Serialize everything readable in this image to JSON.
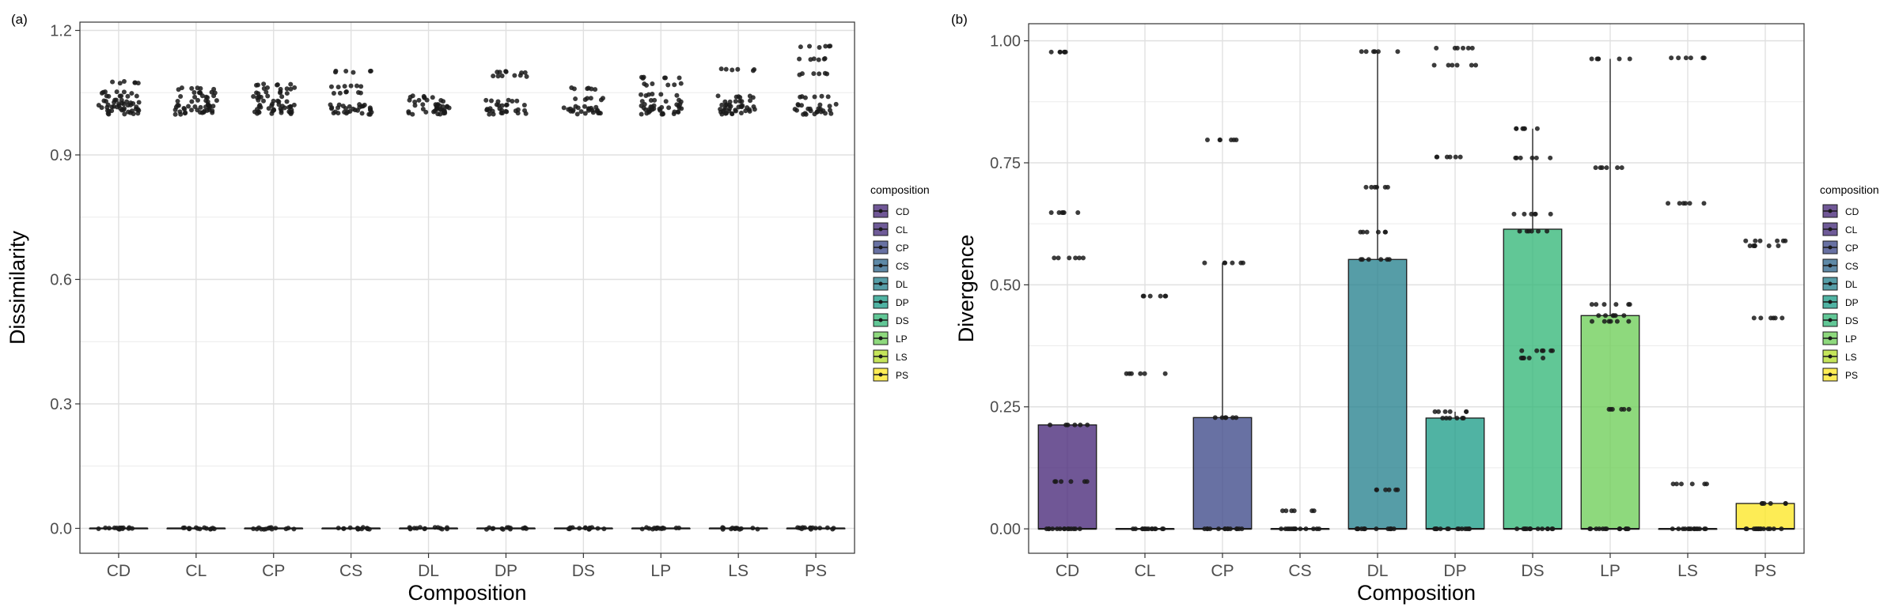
{
  "chart_data": [
    {
      "type": "box",
      "panel_label": "(a)",
      "title": "",
      "xlabel": "Composition",
      "ylabel": "Dissimilarity",
      "categories": [
        "CD",
        "CL",
        "CP",
        "CS",
        "DL",
        "DP",
        "DS",
        "LP",
        "LS",
        "PS"
      ],
      "ylim": [
        -0.06,
        1.22
      ],
      "yticks": [
        0.0,
        0.3,
        0.6,
        0.9,
        1.2
      ],
      "ytick_labels": [
        "0.0",
        "0.3",
        "0.6",
        "0.9",
        "1.2"
      ],
      "grid": true,
      "boxes": [
        {
          "category": "CD",
          "min": 0,
          "q1": 0,
          "median": 0,
          "q3": 0,
          "max": 0
        },
        {
          "category": "CL",
          "min": 0,
          "q1": 0,
          "median": 0,
          "q3": 0,
          "max": 0
        },
        {
          "category": "CP",
          "min": 0,
          "q1": 0,
          "median": 0,
          "q3": 0,
          "max": 0
        },
        {
          "category": "CS",
          "min": 0,
          "q1": 0,
          "median": 0,
          "q3": 0,
          "max": 0
        },
        {
          "category": "DL",
          "min": 0,
          "q1": 0,
          "median": 0,
          "q3": 0,
          "max": 0
        },
        {
          "category": "DP",
          "min": 0,
          "q1": 0,
          "median": 0,
          "q3": 0,
          "max": 0
        },
        {
          "category": "DS",
          "min": 0,
          "q1": 0,
          "median": 0,
          "q3": 0,
          "max": 0
        },
        {
          "category": "LP",
          "min": 0,
          "q1": 0,
          "median": 0,
          "q3": 0,
          "max": 0
        },
        {
          "category": "LS",
          "min": 0,
          "q1": 0,
          "median": 0,
          "q3": 0,
          "max": 0
        },
        {
          "category": "PS",
          "min": 0,
          "q1": 0,
          "median": 0,
          "q3": 0,
          "max": 0
        }
      ],
      "points": [
        {
          "category": "CD",
          "values": [
            0,
            1.0,
            1.005,
            1.01,
            1.015,
            1.02,
            1.025,
            1.03,
            1.04,
            1.05,
            1.075
          ]
        },
        {
          "category": "CL",
          "values": [
            0,
            1.0,
            1.005,
            1.01,
            1.015,
            1.02,
            1.03,
            1.04,
            1.05,
            1.06
          ]
        },
        {
          "category": "CP",
          "values": [
            0,
            1.0,
            1.005,
            1.01,
            1.015,
            1.02,
            1.03,
            1.04,
            1.05,
            1.06,
            1.07
          ]
        },
        {
          "category": "CS",
          "values": [
            0,
            1.0,
            1.005,
            1.01,
            1.015,
            1.02,
            1.05,
            1.065,
            1.1
          ]
        },
        {
          "category": "DL",
          "values": [
            0,
            1.0,
            1.005,
            1.01,
            1.015,
            1.02,
            1.03,
            1.04
          ]
        },
        {
          "category": "DP",
          "values": [
            0,
            1.0,
            1.005,
            1.01,
            1.02,
            1.03,
            1.09,
            1.1
          ]
        },
        {
          "category": "DS",
          "values": [
            0,
            1.0,
            1.005,
            1.01,
            1.015,
            1.035,
            1.06
          ]
        },
        {
          "category": "LP",
          "values": [
            0,
            1.0,
            1.005,
            1.01,
            1.015,
            1.02,
            1.03,
            1.045,
            1.07,
            1.085
          ]
        },
        {
          "category": "LS",
          "values": [
            0,
            1.0,
            1.005,
            1.01,
            1.015,
            1.02,
            1.03,
            1.04,
            1.105
          ]
        },
        {
          "category": "PS",
          "values": [
            0,
            1.0,
            1.005,
            1.01,
            1.02,
            1.04,
            1.095,
            1.13,
            1.16
          ]
        }
      ],
      "legend": {
        "title": "composition",
        "position": "right",
        "entries": [
          "CD",
          "CL",
          "CP",
          "CS",
          "DL",
          "DP",
          "DS",
          "LP",
          "LS",
          "PS"
        ]
      }
    },
    {
      "type": "box",
      "panel_label": "(b)",
      "title": "",
      "xlabel": "Composition",
      "ylabel": "Divergence",
      "categories": [
        "CD",
        "CL",
        "CP",
        "CS",
        "DL",
        "DP",
        "DS",
        "LP",
        "LS",
        "PS"
      ],
      "ylim": [
        -0.05,
        1.035
      ],
      "yticks": [
        0.0,
        0.25,
        0.5,
        0.75,
        1.0
      ],
      "ytick_labels": [
        "0.00",
        "0.25",
        "0.50",
        "0.75",
        "1.00"
      ],
      "grid": true,
      "boxes": [
        {
          "category": "CD",
          "min": 0,
          "q1": 0,
          "median": 0,
          "q3": 0.213,
          "max": 0.213
        },
        {
          "category": "CL",
          "min": 0,
          "q1": 0,
          "median": 0,
          "q3": 0,
          "max": 0
        },
        {
          "category": "CP",
          "min": 0,
          "q1": 0,
          "median": 0,
          "q3": 0.228,
          "max": 0.545
        },
        {
          "category": "CS",
          "min": 0,
          "q1": 0,
          "median": 0,
          "q3": 0,
          "max": 0
        },
        {
          "category": "DL",
          "min": 0,
          "q1": 0,
          "median": 0,
          "q3": 0.552,
          "max": 0.978
        },
        {
          "category": "DP",
          "min": 0,
          "q1": 0,
          "median": 0,
          "q3": 0.227,
          "max": 0.24
        },
        {
          "category": "DS",
          "min": 0,
          "q1": 0,
          "median": 0,
          "q3": 0.614,
          "max": 0.82
        },
        {
          "category": "LP",
          "min": 0,
          "q1": 0,
          "median": 0,
          "q3": 0.437,
          "max": 0.963
        },
        {
          "category": "LS",
          "min": 0,
          "q1": 0,
          "median": 0,
          "q3": 0,
          "max": 0
        },
        {
          "category": "PS",
          "min": 0,
          "q1": 0,
          "median": 0,
          "q3": 0.052,
          "max": 0.052
        }
      ],
      "points": [
        {
          "category": "CD",
          "values": [
            0,
            0.097,
            0.213,
            0.555,
            0.648,
            0.977
          ]
        },
        {
          "category": "CL",
          "values": [
            0,
            0.318,
            0.477
          ]
        },
        {
          "category": "CP",
          "values": [
            0,
            0.228,
            0.545,
            0.797
          ]
        },
        {
          "category": "CS",
          "values": [
            0,
            0.037
          ]
        },
        {
          "category": "DL",
          "values": [
            0,
            0.08,
            0.552,
            0.608,
            0.7,
            0.978
          ]
        },
        {
          "category": "DP",
          "values": [
            0,
            0.227,
            0.24,
            0.762,
            0.95,
            0.985
          ]
        },
        {
          "category": "DS",
          "values": [
            0,
            0.35,
            0.365,
            0.61,
            0.645,
            0.76,
            0.82
          ]
        },
        {
          "category": "LP",
          "values": [
            0,
            0.245,
            0.425,
            0.437,
            0.46,
            0.74,
            0.963
          ]
        },
        {
          "category": "LS",
          "values": [
            0,
            0.092,
            0.667,
            0.965
          ]
        },
        {
          "category": "PS",
          "values": [
            0,
            0.052,
            0.432,
            0.58,
            0.59
          ]
        }
      ],
      "legend": {
        "title": "composition",
        "position": "right",
        "entries": [
          "CD",
          "CL",
          "CP",
          "CS",
          "DL",
          "DP",
          "DS",
          "LP",
          "LS",
          "PS"
        ]
      }
    }
  ],
  "palette": {
    "CD": "#482878",
    "CL": "#3e4989",
    "CP": "#31688e",
    "CS": "#26828e",
    "DL": "#1f9e89",
    "DP": "#35b779",
    "DS": "#6ece58",
    "LP": "#b5de2b",
    "LS": "#fde725",
    "PS": "#fde725"
  },
  "box_fill": {
    "CD": "#482878",
    "CL": "#472d7b",
    "CP": "#3e4989",
    "CS": "#31688e",
    "DL": "#26828e",
    "DP": "#1f9e89",
    "DS": "#35b779",
    "LP": "#6ece58",
    "LS": "#b5de2b",
    "PS": "#fde725"
  },
  "point_color": "#1a1a1a",
  "grid_color": "#ebebeb",
  "frame_color": "#333333"
}
